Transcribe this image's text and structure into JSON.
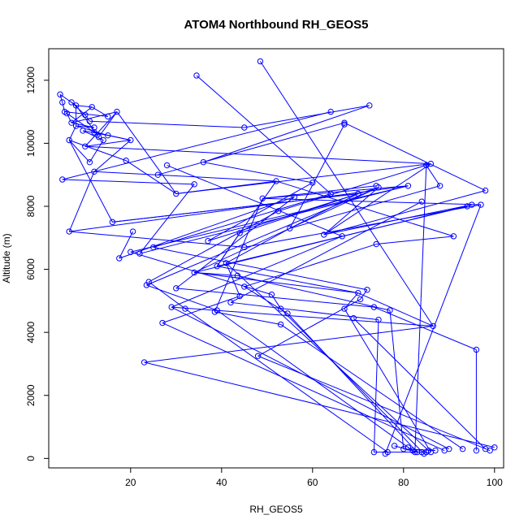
{
  "chart_data": {
    "type": "line",
    "title": "ATOM4 Northbound RH_GEOS5",
    "xlabel": "RH_GEOS5",
    "ylabel": "Altitude (m)",
    "xlim": [
      2,
      102
    ],
    "ylim": [
      -300,
      13000
    ],
    "xticks": [
      20,
      40,
      60,
      80,
      100
    ],
    "yticks": [
      0,
      2000,
      4000,
      6000,
      8000,
      10000,
      12000
    ],
    "grid": false,
    "marker": "open-circle",
    "series": [
      {
        "color": "#0000ff",
        "points": [
          [
            4.5,
            11550
          ],
          [
            5,
            11300
          ],
          [
            7,
            11300
          ],
          [
            11.5,
            11150
          ],
          [
            5.5,
            11000
          ],
          [
            8,
            11200
          ],
          [
            10,
            10900
          ],
          [
            6,
            10950
          ],
          [
            15,
            10850
          ],
          [
            7,
            10650
          ],
          [
            11,
            10700
          ],
          [
            12,
            10500
          ],
          [
            8,
            10550
          ],
          [
            15,
            10250
          ],
          [
            9.5,
            10400
          ],
          [
            13,
            10200
          ],
          [
            14,
            10100
          ],
          [
            45,
            10500
          ],
          [
            12,
            10350
          ],
          [
            17,
            11000
          ],
          [
            20,
            10100
          ],
          [
            64,
            11000
          ],
          [
            10,
            9900
          ],
          [
            11,
            9400
          ],
          [
            6.5,
            10100
          ],
          [
            19,
            9450
          ],
          [
            72.5,
            11200
          ],
          [
            26,
            9000
          ],
          [
            30,
            8400
          ],
          [
            36,
            9400
          ],
          [
            12,
            9100
          ],
          [
            16,
            7500
          ],
          [
            67,
            10650
          ],
          [
            5,
            8850
          ],
          [
            85,
            9300
          ],
          [
            34,
            8700
          ],
          [
            86,
            9350
          ],
          [
            60,
            8750
          ],
          [
            98,
            8500
          ],
          [
            52,
            8800
          ],
          [
            70,
            8400
          ],
          [
            88,
            8650
          ],
          [
            6.5,
            7200
          ],
          [
            20.5,
            7200
          ],
          [
            22,
            6500
          ],
          [
            37,
            6900
          ],
          [
            45,
            6700
          ],
          [
            62.5,
            7100
          ],
          [
            91,
            7050
          ],
          [
            34.5,
            12150
          ],
          [
            17.5,
            6350
          ],
          [
            28,
            9300
          ],
          [
            44,
            7150
          ],
          [
            55,
            7300
          ],
          [
            64,
            8400
          ],
          [
            81,
            8650
          ],
          [
            74.5,
            8600
          ],
          [
            95,
            8050
          ],
          [
            52.5,
            7850
          ],
          [
            97,
            8050
          ],
          [
            56,
            8300
          ],
          [
            74,
            6800
          ],
          [
            25,
            6700
          ],
          [
            20,
            6550
          ],
          [
            39,
            6100
          ],
          [
            41,
            6200
          ],
          [
            34,
            5900
          ],
          [
            66.5,
            7050
          ],
          [
            84,
            8150
          ],
          [
            49,
            8250
          ],
          [
            24,
            5600
          ],
          [
            23.5,
            5500
          ],
          [
            30,
            5400
          ],
          [
            45,
            5450
          ],
          [
            51,
            5200
          ],
          [
            72,
            5350
          ],
          [
            43.5,
            5800
          ],
          [
            70,
            5250
          ],
          [
            44,
            5150
          ],
          [
            29,
            4800
          ],
          [
            32,
            4750
          ],
          [
            42,
            4950
          ],
          [
            39,
            4700
          ],
          [
            38.5,
            4650
          ],
          [
            53,
            4750
          ],
          [
            73.5,
            4800
          ],
          [
            77,
            4700
          ],
          [
            70.5,
            5050
          ],
          [
            54.5,
            4600
          ],
          [
            67,
            4750
          ],
          [
            27,
            4300
          ],
          [
            86.5,
            4200
          ],
          [
            74.5,
            4400
          ],
          [
            69,
            4450
          ],
          [
            53,
            4250
          ],
          [
            96,
            3450
          ],
          [
            48,
            3250
          ],
          [
            23,
            3050
          ],
          [
            73.5,
            200
          ],
          [
            76.5,
            200
          ],
          [
            82,
            250
          ],
          [
            84.5,
            150
          ],
          [
            80,
            300
          ],
          [
            83,
            200
          ],
          [
            86,
            200
          ],
          [
            89,
            250
          ],
          [
            93,
            300
          ],
          [
            96,
            250
          ],
          [
            99,
            250
          ],
          [
            100,
            350
          ],
          [
            84,
            200
          ],
          [
            98,
            300
          ],
          [
            81,
            350
          ],
          [
            85,
            200
          ],
          [
            87,
            250
          ],
          [
            78,
            400
          ],
          [
            90,
            300
          ],
          [
            76,
            150
          ],
          [
            82.5,
            200
          ],
          [
            85.5,
            250
          ],
          [
            48.5,
            12600
          ],
          [
            94,
            8000
          ],
          [
            67,
            10600
          ],
          [
            74,
            8650
          ]
        ],
        "segments": [
          [
            0,
            1
          ],
          [
            1,
            4
          ],
          [
            4,
            8
          ],
          [
            8,
            3
          ],
          [
            3,
            5
          ],
          [
            5,
            15
          ],
          [
            15,
            19
          ],
          [
            19,
            22
          ],
          [
            22,
            20
          ],
          [
            20,
            18
          ],
          [
            18,
            7
          ],
          [
            7,
            9
          ],
          [
            9,
            11
          ],
          [
            11,
            12
          ],
          [
            12,
            13
          ],
          [
            13,
            14
          ],
          [
            14,
            16
          ],
          [
            16,
            23
          ],
          [
            23,
            24
          ],
          [
            24,
            25
          ],
          [
            25,
            28
          ],
          [
            28,
            36
          ],
          [
            36,
            58
          ],
          [
            58,
            70
          ],
          [
            70,
            80
          ],
          [
            80,
            99
          ],
          [
            2,
            6
          ],
          [
            6,
            10
          ],
          [
            10,
            17
          ],
          [
            17,
            26
          ],
          [
            26,
            29
          ],
          [
            29,
            37
          ],
          [
            37,
            45
          ],
          [
            45,
            56
          ],
          [
            56,
            71
          ],
          [
            71,
            82
          ],
          [
            82,
            100
          ],
          [
            21,
            33
          ],
          [
            33,
            35
          ],
          [
            35,
            44
          ],
          [
            44,
            55
          ],
          [
            55,
            63
          ],
          [
            63,
            74
          ],
          [
            74,
            84
          ],
          [
            84,
            101
          ],
          [
            27,
            32
          ],
          [
            32,
            38
          ],
          [
            38,
            47
          ],
          [
            47,
            57
          ],
          [
            57,
            66
          ],
          [
            66,
            76
          ],
          [
            76,
            86
          ],
          [
            86,
            102
          ],
          [
            30,
            39
          ],
          [
            39,
            48
          ],
          [
            48,
            61
          ],
          [
            61,
            73
          ],
          [
            73,
            88
          ],
          [
            88,
            103
          ],
          [
            31,
            40
          ],
          [
            40,
            52
          ],
          [
            52,
            64
          ],
          [
            64,
            77
          ],
          [
            77,
            89
          ],
          [
            89,
            104
          ],
          [
            34,
            41
          ],
          [
            41,
            53
          ],
          [
            53,
            65
          ],
          [
            65,
            78
          ],
          [
            78,
            90
          ],
          [
            90,
            105
          ],
          [
            42,
            46
          ],
          [
            46,
            59
          ],
          [
            59,
            69
          ],
          [
            69,
            83
          ],
          [
            83,
            94
          ],
          [
            94,
            106
          ],
          [
            43,
            50
          ],
          [
            50,
            60
          ],
          [
            60,
            72
          ],
          [
            72,
            85
          ],
          [
            85,
            95
          ],
          [
            95,
            107
          ],
          [
            49,
            54
          ],
          [
            54,
            62
          ],
          [
            62,
            75
          ],
          [
            75,
            87
          ],
          [
            87,
            96
          ],
          [
            96,
            108
          ],
          [
            51,
            67
          ],
          [
            67,
            79
          ],
          [
            79,
            91
          ],
          [
            91,
            97
          ],
          [
            97,
            109
          ],
          [
            68,
            81
          ],
          [
            81,
            92
          ],
          [
            92,
            98
          ],
          [
            98,
            110
          ],
          [
            93,
            111
          ],
          [
            100,
            112
          ],
          [
            101,
            113
          ],
          [
            102,
            114
          ],
          [
            103,
            115
          ],
          [
            124,
            79
          ],
          [
            79,
            116
          ],
          [
            125,
            59
          ],
          [
            59,
            117
          ],
          [
            126,
            34
          ],
          [
            34,
            118
          ],
          [
            127,
            65
          ],
          [
            65,
            119
          ],
          [
            22,
            36
          ],
          [
            36,
            47
          ],
          [
            47,
            56
          ],
          [
            56,
            66
          ],
          [
            66,
            77
          ],
          [
            77,
            91
          ],
          [
            91,
            120
          ],
          [
            3,
            9
          ],
          [
            9,
            19
          ],
          [
            19,
            28
          ],
          [
            28,
            39
          ],
          [
            39,
            52
          ],
          [
            52,
            64
          ],
          [
            64,
            121
          ],
          [
            0,
            5
          ],
          [
            5,
            12
          ],
          [
            12,
            24
          ],
          [
            24,
            31
          ],
          [
            31,
            40
          ],
          [
            40,
            53
          ],
          [
            53,
            122
          ],
          [
            13,
            20
          ],
          [
            20,
            30
          ],
          [
            30,
            42
          ],
          [
            42,
            55
          ],
          [
            55,
            69
          ],
          [
            69,
            123
          ]
        ]
      }
    ]
  }
}
